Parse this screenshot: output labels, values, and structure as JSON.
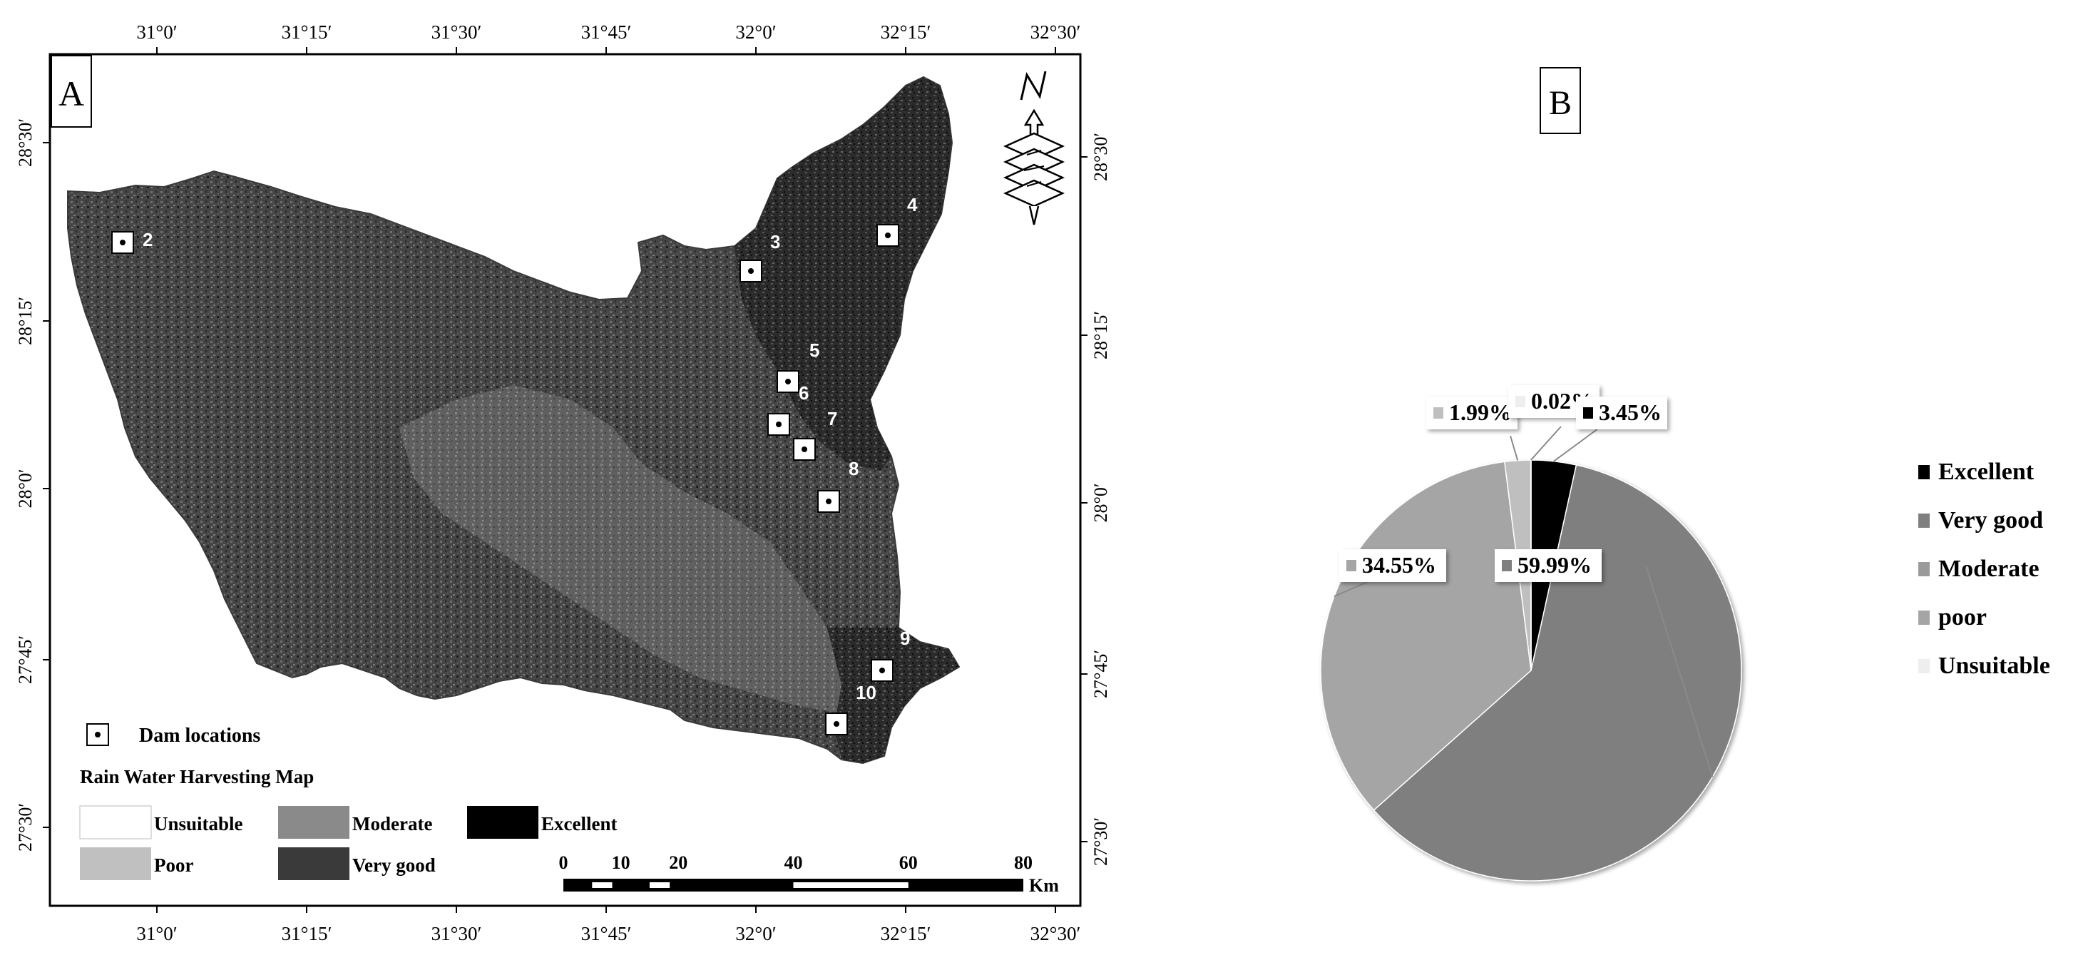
{
  "panel_a": {
    "label": "A",
    "top_ticks": [
      "31°0′",
      "31°15′",
      "31°30′",
      "31°45′",
      "32°0′",
      "32°15′",
      "32°30′"
    ],
    "bottom_ticks": [
      "31°0′",
      "31°15′",
      "31°30′",
      "31°45′",
      "32°0′",
      "32°15′",
      "32°30′"
    ],
    "left_ticks": [
      "28°30′",
      "28°15′",
      "28°0′",
      "27°45′",
      "27°30′"
    ],
    "right_ticks": [
      "28°30′",
      "28°15′",
      "28°0′",
      "27°45′",
      "27°30′"
    ],
    "north_label": "N",
    "dams": [
      {
        "id": "2",
        "label": "2"
      },
      {
        "id": "3",
        "label": "3"
      },
      {
        "id": "4",
        "label": "4"
      },
      {
        "id": "5",
        "label": "5"
      },
      {
        "id": "6",
        "label": "6"
      },
      {
        "id": "7",
        "label": "7"
      },
      {
        "id": "8",
        "label": "8"
      },
      {
        "id": "9",
        "label": "9"
      },
      {
        "id": "10",
        "label": "10"
      }
    ],
    "legend": {
      "dam_label": "Dam locations",
      "title": "Rain Water Harvesting Map",
      "classes": [
        {
          "name": "Unsuitable",
          "color": "#ffffff"
        },
        {
          "name": "Moderate",
          "color": "#8a8a8a"
        },
        {
          "name": "Excellent",
          "color": "#000000"
        },
        {
          "name": "Poor",
          "color": "#c0c0c0"
        },
        {
          "name": "Very good",
          "color": "#3a3a3a"
        }
      ]
    },
    "scale": {
      "ticks": [
        "0",
        "10",
        "20",
        "40",
        "60",
        "80"
      ],
      "unit": "Km"
    },
    "colors": {
      "excellent": "#141414",
      "very_good": "#3c3c3c",
      "moderate": "#707070",
      "poor": "#a8a8a8"
    }
  },
  "panel_b": {
    "label": "B",
    "chart_data": {
      "type": "pie",
      "title": "",
      "slices": [
        {
          "name": "Excellent",
          "value": 3.45,
          "label": "3.45%",
          "color": "#000000"
        },
        {
          "name": "Very good",
          "value": 59.99,
          "label": "59.99%",
          "color": "#7f7f7f"
        },
        {
          "name": "Moderate",
          "value": 0,
          "label": "",
          "color": "#9a9a9a"
        },
        {
          "name": "poor",
          "value": 34.55,
          "label": "34.55%",
          "color": "#a5a5a5"
        },
        {
          "name": "Unsuitable",
          "value": 0.02,
          "label": "0.02%",
          "color": "#eeeeee"
        }
      ],
      "extra_labels": [
        {
          "label": "1.99%",
          "color": "#bfbfbf"
        }
      ],
      "legend": [
        "Excellent",
        "Very good",
        "Moderate",
        "poor",
        "Unsuitable"
      ],
      "legend_position": "right"
    }
  }
}
